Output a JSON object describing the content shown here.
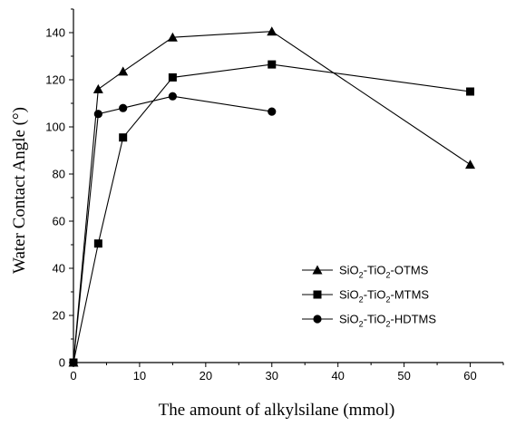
{
  "chart_data": {
    "type": "line",
    "xlabel": "The amount of alkylsilane (mmol)",
    "ylabel": "Water Contact Angle (°)",
    "xlim": [
      0,
      65
    ],
    "ylim": [
      0,
      150
    ],
    "x_ticks": [
      0,
      10,
      20,
      30,
      40,
      50,
      60
    ],
    "y_ticks": [
      0,
      20,
      40,
      60,
      80,
      100,
      120,
      140
    ],
    "grid": false,
    "legend_position": "bottom-right",
    "series": [
      {
        "name": "SiO2-TiO2-OTMS",
        "legend": {
          "a": "SiO",
          "s1": "2",
          "b": "-TiO",
          "s2": "2",
          "c": "-OTMS"
        },
        "marker": "triangle",
        "x": [
          0,
          3.75,
          7.5,
          15,
          30,
          60
        ],
        "y": [
          0,
          116,
          123.5,
          138,
          140.5,
          84
        ]
      },
      {
        "name": "SiO2-TiO2-MTMS",
        "legend": {
          "a": "SiO",
          "s1": "2",
          "b": "-TiO",
          "s2": "2",
          "c": "-MTMS"
        },
        "marker": "square",
        "x": [
          0,
          3.75,
          7.5,
          15,
          30,
          60
        ],
        "y": [
          0,
          50.5,
          95.5,
          121,
          126.5,
          115
        ]
      },
      {
        "name": "SiO2-TiO2-HDTMS",
        "legend": {
          "a": "SiO",
          "s1": "2",
          "b": "-TiO",
          "s2": "2",
          "c": "-HDTMS"
        },
        "marker": "circle",
        "x": [
          0,
          3.75,
          7.5,
          15,
          30
        ],
        "y": [
          0,
          105.5,
          108,
          113,
          106.5
        ]
      }
    ]
  }
}
